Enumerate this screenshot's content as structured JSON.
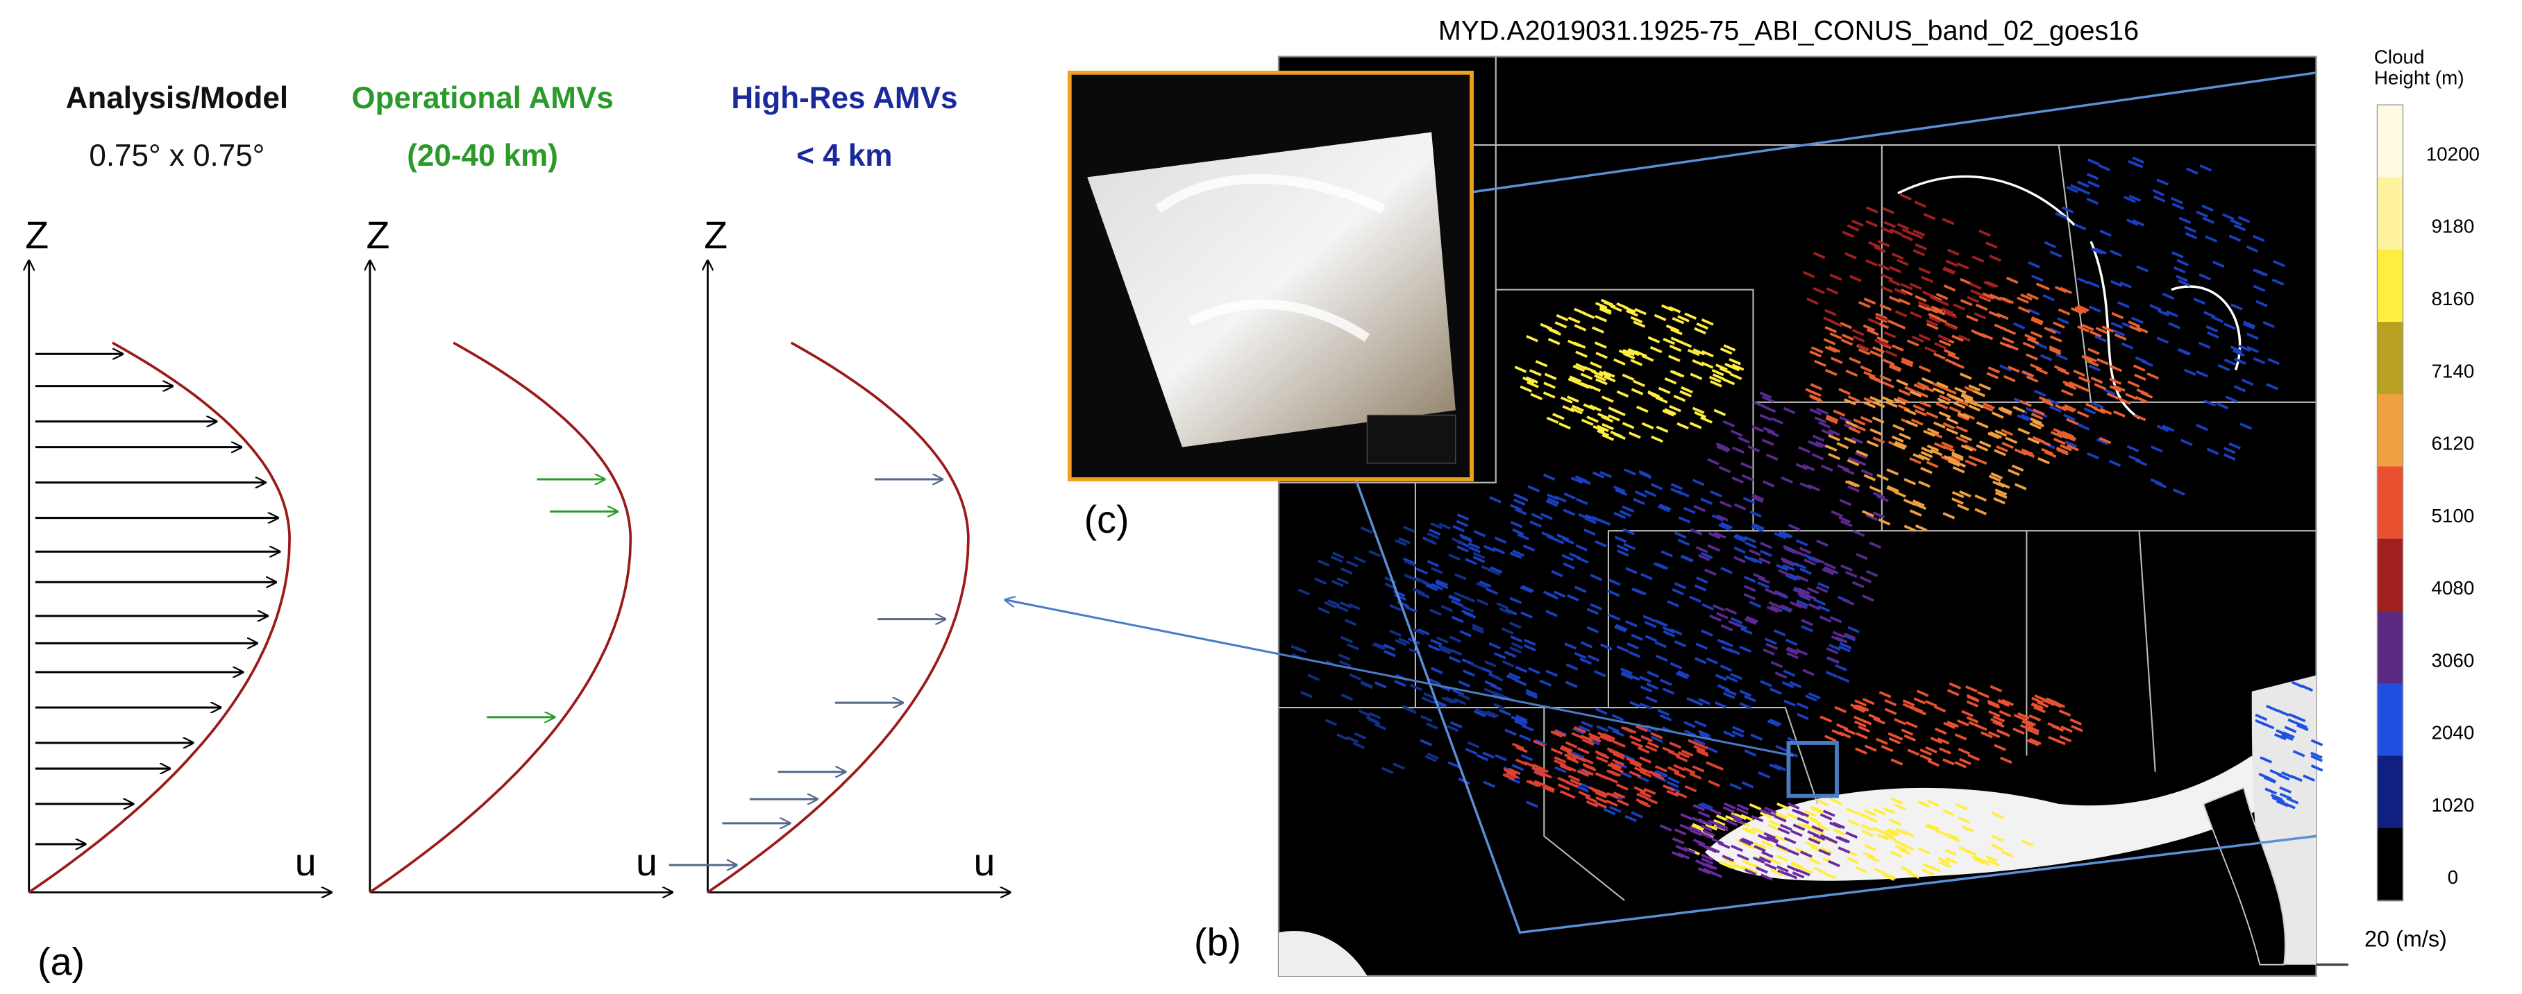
{
  "panels": [
    {
      "title": "Analysis/Model",
      "subtitle": "0.75° x 0.75°",
      "z_axis": "Z",
      "u_axis": "u",
      "label": "(a)"
    },
    {
      "title": "Operational  AMVs",
      "subtitle": "(20-40 km)",
      "z_axis": "Z",
      "u_axis": "u"
    },
    {
      "title": "High-Res AMVs",
      "subtitle": "< 4 km",
      "z_axis": "Z",
      "u_axis": "u"
    }
  ],
  "inset": {
    "label": "(c)"
  },
  "map": {
    "title": "MYD.A2019031.1925-75_ABI_CONUS_band_02_goes16",
    "label": "(b)"
  },
  "colorbar": {
    "title_lines": [
      "Cloud",
      "Height (m)"
    ],
    "ticks": [
      10200,
      9180,
      8160,
      7140,
      6120,
      5100,
      4080,
      3060,
      2040,
      1020,
      0
    ],
    "colors": [
      "#fffbe0",
      "#fff3a0",
      "#ffee40",
      "#b8a020",
      "#f0a040",
      "#e85030",
      "#a02020",
      "#5a2a80",
      "#2050e0",
      "#102080",
      "#000000"
    ],
    "scale_label": "20 (m/s)"
  }
}
